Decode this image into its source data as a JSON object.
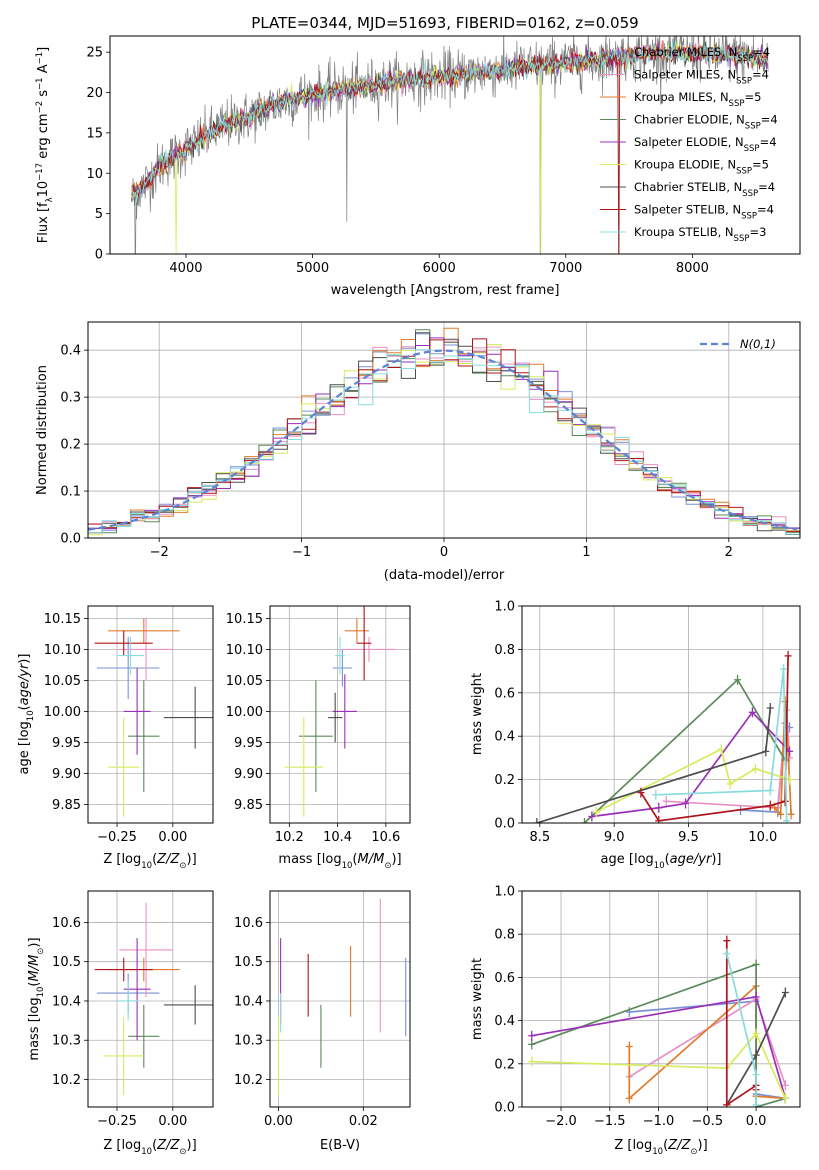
{
  "colors": {
    "chabrier_miles": "#7a91d6",
    "salpeter_miles": "#e88fc4",
    "kroupa_miles": "#e07b2a",
    "chabrier_elodie": "#5a8a5a",
    "salpeter_elodie": "#9b2fb8",
    "kroupa_elodie": "#d6ec5c",
    "chabrier_stelib": "#4d4d4d",
    "salpeter_stelib": "#b0141a",
    "kroupa_stelib": "#88dce0",
    "normal": "#5b84d6"
  },
  "chart_data": [
    {
      "id": "spectrum",
      "type": "line",
      "title": "PLATE=0344, MJD=51693, FIBERID=0162, z=0.059",
      "xlabel": "wavelength [Angstrom, rest frame]",
      "ylabel": "Flux [f_λ10^-17 erg cm^-2 s^-1 A^-1]",
      "xlim": [
        3400,
        8850
      ],
      "ylim": [
        0,
        27
      ],
      "xticks": [
        4000,
        5000,
        6000,
        7000,
        8000
      ],
      "yticks": [
        0,
        5,
        10,
        15,
        20,
        25
      ],
      "legend_position": "top-right",
      "continuum": {
        "x": [
          3570,
          3700,
          3800,
          3900,
          4000,
          4100,
          4200,
          4300,
          4400,
          4500,
          4700,
          4900,
          5100,
          5300,
          5500,
          5700,
          6000,
          6300,
          6600,
          6900,
          7200,
          7500,
          7800,
          8100,
          8400,
          8600
        ],
        "y": [
          7,
          9,
          11,
          12,
          13,
          14,
          15,
          16,
          16.5,
          17,
          18.5,
          19.5,
          20,
          20.5,
          21,
          21.5,
          22,
          22.5,
          23,
          23.5,
          24,
          24.5,
          25,
          24.8,
          24.5,
          24
        ]
      },
      "series": [
        {
          "name": "Chabrier MILES, N_SSP=4",
          "label": "Chabrier MILES, N",
          "sub": "SSP",
          "suffix": "=4",
          "color_key": "chabrier_miles"
        },
        {
          "name": "Salpeter MILES, N_SSP=4",
          "label": "Salpeter MILES, N",
          "sub": "SSP",
          "suffix": "=4",
          "color_key": "salpeter_miles"
        },
        {
          "name": "Kroupa MILES, N_SSP=5",
          "label": "Kroupa MILES, N",
          "sub": "SSP",
          "suffix": "=5",
          "color_key": "kroupa_miles"
        },
        {
          "name": "Chabrier ELODIE, N_SSP=4",
          "label": "Chabrier ELODIE, N",
          "sub": "SSP",
          "suffix": "=4",
          "color_key": "chabrier_elodie"
        },
        {
          "name": "Salpeter ELODIE, N_SSP=4",
          "label": "Salpeter ELODIE, N",
          "sub": "SSP",
          "suffix": "=4",
          "color_key": "salpeter_elodie"
        },
        {
          "name": "Kroupa ELODIE, N_SSP=5",
          "label": "Kroupa ELODIE, N",
          "sub": "SSP",
          "suffix": "=5",
          "color_key": "kroupa_elodie"
        },
        {
          "name": "Chabrier STELIB, N_SSP=4",
          "label": "Chabrier STELIB, N",
          "sub": "SSP",
          "suffix": "=4",
          "color_key": "chabrier_stelib"
        },
        {
          "name": "Salpeter STELIB, N_SSP=4",
          "label": "Salpeter STELIB, N",
          "sub": "SSP",
          "suffix": "=4",
          "color_key": "salpeter_stelib"
        },
        {
          "name": "Kroupa STELIB, N_SSP=3",
          "label": "Kroupa STELIB, N",
          "sub": "SSP",
          "suffix": "=3",
          "color_key": "kroupa_stelib"
        }
      ]
    },
    {
      "id": "residuals",
      "type": "histogram",
      "xlabel": "(data-model)/error",
      "ylabel": "Normed distribution",
      "xlim": [
        -2.5,
        2.5
      ],
      "ylim": [
        0,
        0.46
      ],
      "xticks": [
        -2,
        -1,
        0,
        1,
        2
      ],
      "yticks": [
        0.0,
        0.1,
        0.2,
        0.3,
        0.4
      ],
      "grid": true,
      "legend_position": "top-right",
      "reference": {
        "name": "N(0,1)",
        "mean": 0,
        "sigma": 1
      },
      "bin_width": 0.1
    },
    {
      "id": "age_vs_Z",
      "type": "errorbar",
      "xlabel": "Z [log10(Z/Z⊙)]",
      "ylabel": "age [log10(age/yr)]",
      "xlim": [
        -0.38,
        0.18
      ],
      "ylim": [
        9.82,
        10.17
      ],
      "xticks": [
        -0.25,
        0.0
      ],
      "yticks": [
        9.85,
        9.9,
        9.95,
        10.0,
        10.05,
        10.1,
        10.15
      ],
      "grid": true,
      "points": [
        {
          "key": "chabrier_miles",
          "x": -0.2,
          "y": 10.07,
          "xerr": 0.14,
          "yerr": 0.05
        },
        {
          "key": "salpeter_miles",
          "x": -0.12,
          "y": 10.1,
          "xerr": 0.12,
          "yerr": 0.05
        },
        {
          "key": "kroupa_miles",
          "x": -0.13,
          "y": 10.13,
          "xerr": 0.16,
          "yerr": 0.02
        },
        {
          "key": "chabrier_elodie",
          "x": -0.13,
          "y": 9.96,
          "xerr": 0.07,
          "yerr": 0.09
        },
        {
          "key": "salpeter_elodie",
          "x": -0.16,
          "y": 10.0,
          "xerr": 0.06,
          "yerr": 0.07
        },
        {
          "key": "kroupa_elodie",
          "x": -0.22,
          "y": 9.91,
          "xerr": 0.07,
          "yerr": 0.08
        },
        {
          "key": "chabrier_stelib",
          "x": 0.1,
          "y": 9.99,
          "xerr": 0.14,
          "yerr": 0.05
        },
        {
          "key": "salpeter_stelib",
          "x": -0.22,
          "y": 10.11,
          "xerr": 0.13,
          "yerr": 0.02
        },
        {
          "key": "kroupa_stelib",
          "x": -0.19,
          "y": 10.09,
          "xerr": 0.06,
          "yerr": 0.03
        }
      ]
    },
    {
      "id": "age_vs_mass",
      "type": "errorbar",
      "xlabel": "mass [log10(M/M⊙)]",
      "ylabel": "",
      "xlim": [
        10.12,
        10.7
      ],
      "ylim": [
        9.82,
        10.17
      ],
      "xticks": [
        10.2,
        10.4,
        10.6
      ],
      "yticks": [
        9.85,
        9.9,
        9.95,
        10.0,
        10.05,
        10.1,
        10.15
      ],
      "grid": true,
      "points": [
        {
          "key": "chabrier_miles",
          "x": 10.42,
          "y": 10.07,
          "xerr": 0.04,
          "yerr": 0.03
        },
        {
          "key": "salpeter_miles",
          "x": 10.53,
          "y": 10.1,
          "xerr": 0.11,
          "yerr": 0.02
        },
        {
          "key": "kroupa_miles",
          "x": 10.48,
          "y": 10.13,
          "xerr": 0.05,
          "yerr": 0.02
        },
        {
          "key": "chabrier_elodie",
          "x": 10.31,
          "y": 9.96,
          "xerr": 0.07,
          "yerr": 0.09
        },
        {
          "key": "salpeter_elodie",
          "x": 10.43,
          "y": 10.0,
          "xerr": 0.05,
          "yerr": 0.06
        },
        {
          "key": "kroupa_elodie",
          "x": 10.26,
          "y": 9.91,
          "xerr": 0.08,
          "yerr": 0.08
        },
        {
          "key": "chabrier_stelib",
          "x": 10.39,
          "y": 9.99,
          "xerr": 0.03,
          "yerr": 0.04
        },
        {
          "key": "salpeter_stelib",
          "x": 10.51,
          "y": 10.11,
          "xerr": 0.03,
          "yerr": 0.06
        },
        {
          "key": "kroupa_stelib",
          "x": 10.41,
          "y": 10.09,
          "xerr": 0.02,
          "yerr": 0.03
        }
      ]
    },
    {
      "id": "weight_vs_age",
      "type": "line",
      "xlabel": "age [log10(age/yr)]",
      "ylabel": "mass weight",
      "xlim": [
        8.38,
        10.25
      ],
      "ylim": [
        0,
        1
      ],
      "xticks": [
        8.5,
        9.0,
        9.5,
        10.0
      ],
      "yticks": [
        0.0,
        0.2,
        0.4,
        0.6,
        0.8,
        1.0
      ],
      "grid": true,
      "series": [
        {
          "key": "chabrier_miles",
          "points": [
            [
              9.85,
              0.06
            ],
            [
              10.1,
              0.05
            ],
            [
              10.15,
              0.46
            ],
            [
              10.18,
              0.44
            ]
          ]
        },
        {
          "key": "salpeter_miles",
          "points": [
            [
              9.35,
              0.1
            ],
            [
              10.1,
              0.07
            ],
            [
              10.16,
              0.52
            ],
            [
              10.18,
              0.3
            ]
          ]
        },
        {
          "key": "kroupa_miles",
          "points": [
            [
              10.08,
              0.07
            ],
            [
              10.12,
              0.04
            ],
            [
              10.15,
              0.56
            ],
            [
              10.17,
              0.33
            ],
            [
              10.19,
              0.04
            ]
          ]
        },
        {
          "key": "chabrier_elodie",
          "points": [
            [
              8.8,
              0.0
            ],
            [
              9.83,
              0.66
            ],
            [
              10.15,
              0.29
            ]
          ]
        },
        {
          "key": "salpeter_elodie",
          "points": [
            [
              8.85,
              0.03
            ],
            [
              9.3,
              0.07
            ],
            [
              9.48,
              0.09
            ],
            [
              9.93,
              0.51
            ],
            [
              10.18,
              0.33
            ]
          ]
        },
        {
          "key": "kroupa_elodie",
          "points": [
            [
              8.88,
              0.05
            ],
            [
              9.72,
              0.34
            ],
            [
              9.78,
              0.18
            ],
            [
              9.95,
              0.25
            ],
            [
              10.18,
              0.2
            ]
          ]
        },
        {
          "key": "chabrier_stelib",
          "points": [
            [
              8.48,
              0.0
            ],
            [
              10.02,
              0.33
            ],
            [
              10.05,
              0.53
            ]
          ]
        },
        {
          "key": "salpeter_stelib",
          "points": [
            [
              9.18,
              0.14
            ],
            [
              9.3,
              0.01
            ],
            [
              10.05,
              0.08
            ],
            [
              10.15,
              0.1
            ],
            [
              10.17,
              0.77
            ]
          ]
        },
        {
          "key": "kroupa_stelib",
          "points": [
            [
              9.28,
              0.13
            ],
            [
              10.05,
              0.15
            ],
            [
              10.14,
              0.71
            ],
            [
              10.16,
              0.01
            ]
          ]
        }
      ]
    },
    {
      "id": "mass_vs_Z",
      "type": "errorbar",
      "xlabel": "Z [log10(Z/Z⊙)]",
      "ylabel": "mass [log10(M/M⊙)]",
      "xlim": [
        -0.38,
        0.18
      ],
      "ylim": [
        10.13,
        10.68
      ],
      "xticks": [
        -0.25,
        0.0
      ],
      "yticks": [
        10.2,
        10.3,
        10.4,
        10.5,
        10.6
      ],
      "grid": true,
      "points": [
        {
          "key": "chabrier_miles",
          "x": -0.2,
          "y": 10.42,
          "xerr": 0.14,
          "yerr": 0.05
        },
        {
          "key": "salpeter_miles",
          "x": -0.12,
          "y": 10.53,
          "xerr": 0.12,
          "yerr": 0.12
        },
        {
          "key": "kroupa_miles",
          "x": -0.13,
          "y": 10.48,
          "xerr": 0.16,
          "yerr": 0.03
        },
        {
          "key": "chabrier_elodie",
          "x": -0.13,
          "y": 10.31,
          "xerr": 0.07,
          "yerr": 0.08
        },
        {
          "key": "salpeter_elodie",
          "x": -0.16,
          "y": 10.43,
          "xerr": 0.06,
          "yerr": 0.13
        },
        {
          "key": "kroupa_elodie",
          "x": -0.22,
          "y": 10.26,
          "xerr": 0.09,
          "yerr": 0.1
        },
        {
          "key": "chabrier_stelib",
          "x": 0.1,
          "y": 10.39,
          "xerr": 0.14,
          "yerr": 0.05
        },
        {
          "key": "salpeter_stelib",
          "x": -0.22,
          "y": 10.48,
          "xerr": 0.13,
          "yerr": 0.03
        },
        {
          "key": "kroupa_stelib",
          "x": -0.2,
          "y": 10.4,
          "xerr": 0.05,
          "yerr": 0.05
        }
      ]
    },
    {
      "id": "mass_vs_EBV",
      "type": "errorbar",
      "xlabel": "E(B-V)",
      "ylabel": "",
      "xlim": [
        -0.002,
        0.031
      ],
      "ylim": [
        10.13,
        10.68
      ],
      "xticks": [
        0.0,
        0.02
      ],
      "yticks": [
        10.2,
        10.3,
        10.4,
        10.5,
        10.6
      ],
      "grid": true,
      "points": [
        {
          "key": "chabrier_miles",
          "x": 0.03,
          "y": 10.41,
          "xerr": 0,
          "yerr": 0.1
        },
        {
          "key": "salpeter_miles",
          "x": 0.024,
          "y": 10.49,
          "xerr": 0,
          "yerr": 0.17
        },
        {
          "key": "kroupa_miles",
          "x": 0.017,
          "y": 10.45,
          "xerr": 0,
          "yerr": 0.09
        },
        {
          "key": "chabrier_elodie",
          "x": 0.01,
          "y": 10.31,
          "xerr": 0,
          "yerr": 0.08
        },
        {
          "key": "salpeter_elodie",
          "x": 0.0005,
          "y": 10.45,
          "xerr": 0,
          "yerr": 0.11
        },
        {
          "key": "kroupa_elodie",
          "x": 0.0,
          "y": 10.26,
          "xerr": 0,
          "yerr": 0.1
        },
        {
          "key": "salpeter_stelib",
          "x": 0.007,
          "y": 10.44,
          "xerr": 0,
          "yerr": 0.08
        },
        {
          "key": "kroupa_stelib",
          "x": 0.0005,
          "y": 10.37,
          "xerr": 0,
          "yerr": 0.05
        }
      ]
    },
    {
      "id": "weight_vs_Z",
      "type": "line",
      "xlabel": "Z [log10(Z/Z⊙)]",
      "ylabel": "mass weight",
      "xlim": [
        -2.4,
        0.45
      ],
      "ylim": [
        0,
        1
      ],
      "xticks": [
        -2.0,
        -1.5,
        -1.0,
        -0.5,
        0.0
      ],
      "yticks": [
        0.0,
        0.2,
        0.4,
        0.6,
        0.8,
        1.0
      ],
      "grid": true,
      "series": [
        {
          "key": "chabrier_miles",
          "points": [
            [
              -1.3,
              0.44
            ],
            [
              0.0,
              0.49
            ],
            [
              0.0,
              0.06
            ],
            [
              0.3,
              0.04
            ]
          ]
        },
        {
          "key": "salpeter_miles",
          "points": [
            [
              -1.3,
              0.14
            ],
            [
              0.0,
              0.5
            ],
            [
              0.3,
              0.1
            ]
          ]
        },
        {
          "key": "kroupa_miles",
          "points": [
            [
              -1.3,
              0.28
            ],
            [
              -1.3,
              0.04
            ],
            [
              0.0,
              0.56
            ],
            [
              0.0,
              0.05
            ],
            [
              0.3,
              0.04
            ]
          ]
        },
        {
          "key": "chabrier_elodie",
          "points": [
            [
              -2.3,
              0.29
            ],
            [
              0.0,
              0.66
            ],
            [
              0.0,
              0.0
            ],
            [
              0.3,
              0.04
            ]
          ]
        },
        {
          "key": "salpeter_elodie",
          "points": [
            [
              -2.3,
              0.33
            ],
            [
              0.0,
              0.51
            ],
            [
              0.3,
              0.04
            ]
          ]
        },
        {
          "key": "kroupa_elodie",
          "points": [
            [
              -2.3,
              0.21
            ],
            [
              -0.3,
              0.18
            ],
            [
              0.0,
              0.34
            ],
            [
              0.3,
              0.04
            ]
          ]
        },
        {
          "key": "chabrier_stelib",
          "points": [
            [
              -0.3,
              0.01
            ],
            [
              0.0,
              0.24
            ],
            [
              0.3,
              0.53
            ]
          ]
        },
        {
          "key": "salpeter_stelib",
          "points": [
            [
              -0.3,
              0.77
            ],
            [
              -0.3,
              0.01
            ],
            [
              0.0,
              0.1
            ],
            [
              0.0,
              0.08
            ]
          ]
        },
        {
          "key": "kroupa_stelib",
          "points": [
            [
              -0.3,
              0.71
            ],
            [
              0.0,
              0.15
            ],
            [
              0.0,
              0.01
            ]
          ]
        }
      ]
    }
  ]
}
